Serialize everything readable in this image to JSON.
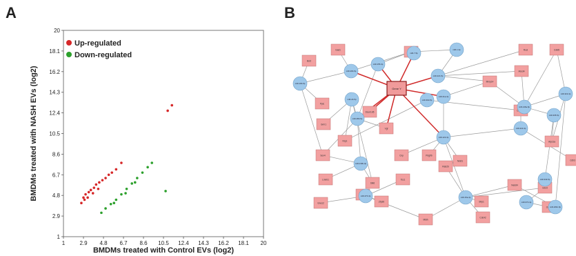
{
  "panels": {
    "a": "A",
    "b": "B"
  },
  "chart_data": {
    "type": "scatter",
    "xlabel": "BMDMs treated with Control EVs (log2)",
    "ylabel": "BMDMs treated with NASH EVs (log2)",
    "xlim": [
      1,
      20
    ],
    "ylim": [
      1,
      20
    ],
    "xticks": [
      "1",
      "2.9",
      "4.8",
      "6.7",
      "8.6",
      "10.5",
      "12.4",
      "14.3",
      "16.2",
      "18.1",
      "20"
    ],
    "yticks": [
      "1",
      "2.9",
      "4.8",
      "6.7",
      "8.6",
      "10.5",
      "12.4",
      "14.3",
      "16.2",
      "18.1",
      "20"
    ],
    "legend_position": "top-left",
    "series": [
      {
        "name": "Up-regulated",
        "color": "#d62728",
        "points": [
          [
            2.9,
            4.6
          ],
          [
            3.1,
            4.9
          ],
          [
            3.4,
            5.1
          ],
          [
            3.6,
            5.3
          ],
          [
            3.9,
            5.5
          ],
          [
            4.1,
            5.8
          ],
          [
            4.4,
            6.0
          ],
          [
            4.7,
            6.2
          ],
          [
            5.0,
            6.4
          ],
          [
            5.3,
            6.7
          ],
          [
            5.6,
            6.9
          ],
          [
            6.0,
            7.2
          ],
          [
            3.3,
            4.6
          ],
          [
            3.8,
            5.0
          ],
          [
            4.3,
            5.4
          ],
          [
            2.7,
            4.1
          ],
          [
            3.0,
            4.4
          ],
          [
            11.3,
            13.1
          ],
          [
            10.9,
            12.6
          ],
          [
            6.5,
            7.8
          ]
        ]
      },
      {
        "name": "Down-regulated",
        "color": "#2ca02c",
        "points": [
          [
            5.0,
            3.6
          ],
          [
            5.5,
            4.0
          ],
          [
            6.0,
            4.4
          ],
          [
            6.5,
            4.9
          ],
          [
            7.0,
            5.4
          ],
          [
            7.5,
            5.9
          ],
          [
            8.0,
            6.4
          ],
          [
            8.5,
            6.9
          ],
          [
            9.0,
            7.4
          ],
          [
            9.4,
            7.8
          ],
          [
            4.6,
            3.2
          ],
          [
            10.7,
            5.2
          ],
          [
            7.8,
            6.0
          ],
          [
            6.9,
            5.0
          ],
          [
            5.8,
            4.1
          ]
        ]
      }
    ],
    "background_color": "#c8c8c8"
  },
  "network": {
    "hub": "Gene Y",
    "squares": [
      {
        "id": "s1",
        "label": "Bcl2"
      },
      {
        "id": "s2",
        "label": "Gad1"
      },
      {
        "id": "s3",
        "label": "Nt5e"
      },
      {
        "id": "s4",
        "label": "Rocl"
      },
      {
        "id": "s5",
        "label": "Cdkl5"
      },
      {
        "id": "s6",
        "label": "Abcd4"
      },
      {
        "id": "s7",
        "label": "Mmp14"
      },
      {
        "id": "s8",
        "label": "Ppic"
      },
      {
        "id": "s9",
        "label": "Grm1"
      },
      {
        "id": "s10",
        "label": "Dcun1d5"
      },
      {
        "id": "s11",
        "label": "Vgf"
      },
      {
        "id": "s12",
        "label": "Nrp1"
      },
      {
        "id": "s13",
        "label": "Col18a1"
      },
      {
        "id": "s14",
        "label": "Atp13a"
      },
      {
        "id": "s15",
        "label": "Sox4"
      },
      {
        "id": "s16",
        "label": "Cnp"
      },
      {
        "id": "s17",
        "label": "Pdgfrb"
      },
      {
        "id": "s18",
        "label": "Ndst1"
      },
      {
        "id": "s19",
        "label": "Rab2b"
      },
      {
        "id": "s20",
        "label": "Cdh3"
      },
      {
        "id": "s21",
        "label": "Stk6"
      },
      {
        "id": "s22",
        "label": "Tsc1"
      },
      {
        "id": "s23",
        "label": "Lmnb1"
      },
      {
        "id": "s24",
        "label": "Nedd4"
      },
      {
        "id": "s25",
        "label": "Crebl2"
      },
      {
        "id": "s26",
        "label": "Hnmt"
      },
      {
        "id": "s27",
        "label": "Gna12"
      },
      {
        "id": "s28",
        "label": "Zfp36"
      },
      {
        "id": "s29",
        "label": "Oxsr1"
      },
      {
        "id": "s30",
        "label": "Mtdh"
      },
      {
        "id": "s31",
        "label": "Cdc42"
      },
      {
        "id": "s32",
        "label": "Sfrp1"
      }
    ],
    "circles": [
      {
        "id": "c1",
        "label": "miR-19b-5p"
      },
      {
        "id": "c2",
        "label": "miR-7-5p"
      },
      {
        "id": "c3",
        "label": "miR-29b-5p"
      },
      {
        "id": "c4",
        "label": "miR-155-3p"
      },
      {
        "id": "c5",
        "label": "miR-1-3p"
      },
      {
        "id": "c6",
        "label": "miR-221-5p"
      },
      {
        "id": "c7",
        "label": "miR-146a-5p"
      },
      {
        "id": "c8",
        "label": "miR-322-3p"
      },
      {
        "id": "c9",
        "label": "miR-24-5p"
      },
      {
        "id": "c10",
        "label": "miR-21a-3p"
      },
      {
        "id": "c11",
        "label": "miR-30d-5p"
      },
      {
        "id": "c12",
        "label": "miR-483-5p"
      },
      {
        "id": "c13",
        "label": "miR-122-3p"
      },
      {
        "id": "c14",
        "label": "miR-222-3p"
      },
      {
        "id": "c15",
        "label": "miR-335-5p"
      },
      {
        "id": "c16",
        "label": "miR-130b-3p"
      },
      {
        "id": "c17",
        "label": "miR-342-5p"
      },
      {
        "id": "c18",
        "label": "miR-15a-3p"
      },
      {
        "id": "c19",
        "label": "miR-674-3p"
      },
      {
        "id": "c20",
        "label": "miR-27b-3p"
      },
      {
        "id": "c21",
        "label": "miR-181b-5p"
      }
    ]
  }
}
